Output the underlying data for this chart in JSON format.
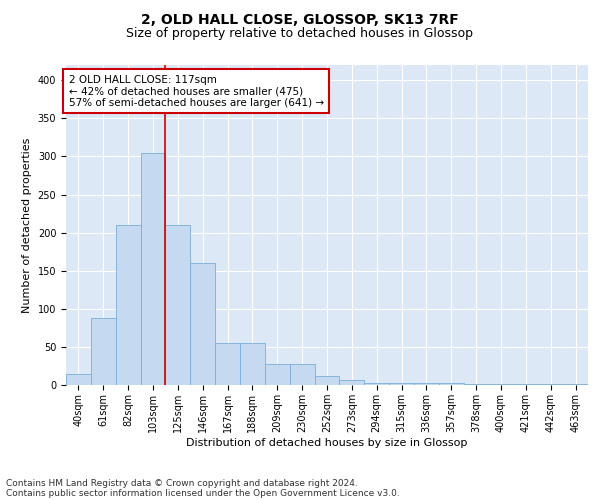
{
  "title": "2, OLD HALL CLOSE, GLOSSOP, SK13 7RF",
  "subtitle": "Size of property relative to detached houses in Glossop",
  "xlabel": "Distribution of detached houses by size in Glossop",
  "ylabel": "Number of detached properties",
  "categories": [
    "40sqm",
    "61sqm",
    "82sqm",
    "103sqm",
    "125sqm",
    "146sqm",
    "167sqm",
    "188sqm",
    "209sqm",
    "230sqm",
    "252sqm",
    "273sqm",
    "294sqm",
    "315sqm",
    "336sqm",
    "357sqm",
    "378sqm",
    "400sqm",
    "421sqm",
    "442sqm",
    "463sqm"
  ],
  "values": [
    15,
    88,
    210,
    305,
    210,
    160,
    55,
    55,
    28,
    28,
    12,
    7,
    3,
    2,
    2,
    2,
    1,
    1,
    1,
    1,
    1
  ],
  "bar_color": "#c5d9f0",
  "bar_edge_color": "#7aadd4",
  "vline_color": "#cc0000",
  "annotation_text": "2 OLD HALL CLOSE: 117sqm\n← 42% of detached houses are smaller (475)\n57% of semi-detached houses are larger (641) →",
  "annotation_box_color": "#ffffff",
  "annotation_box_edge": "#cc0000",
  "footer_line1": "Contains HM Land Registry data © Crown copyright and database right 2024.",
  "footer_line2": "Contains public sector information licensed under the Open Government Licence v3.0.",
  "background_color": "#dce8f5",
  "ylim": [
    0,
    420
  ],
  "yticks": [
    0,
    50,
    100,
    150,
    200,
    250,
    300,
    350,
    400
  ],
  "title_fontsize": 10,
  "subtitle_fontsize": 9,
  "axis_label_fontsize": 8,
  "tick_fontsize": 7,
  "footer_fontsize": 6.5,
  "annotation_fontsize": 7.5,
  "vline_xindex": 3.5
}
